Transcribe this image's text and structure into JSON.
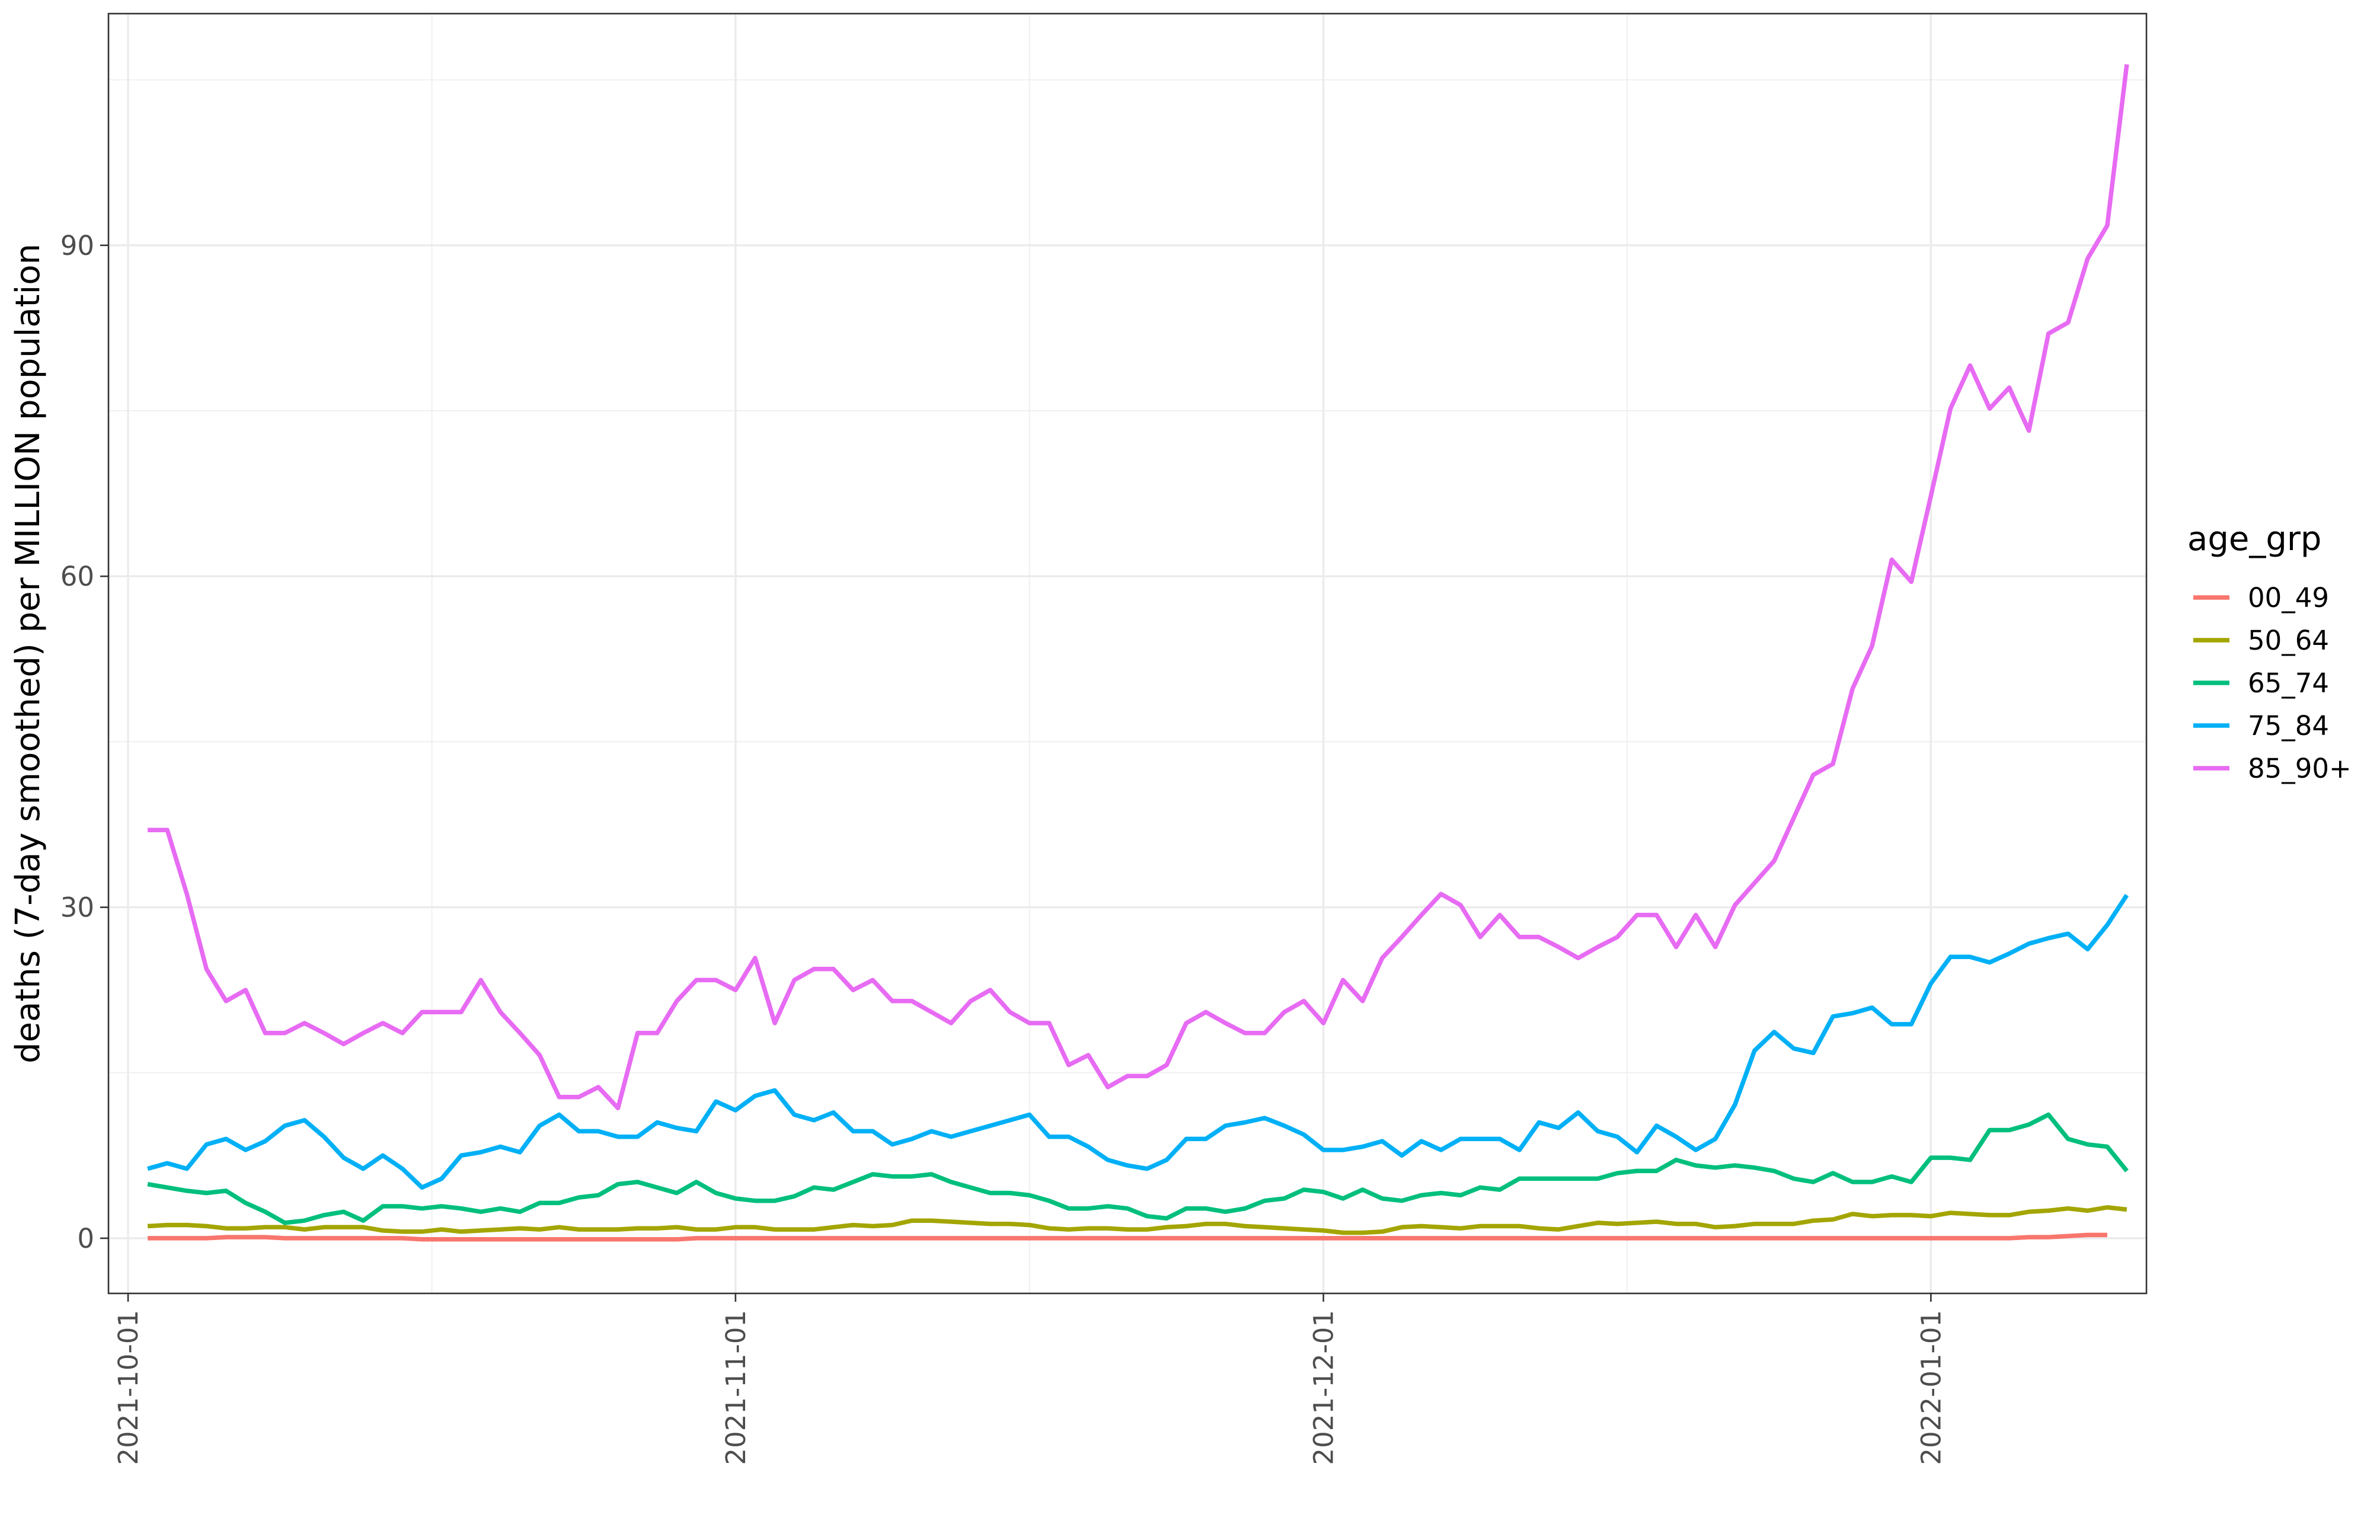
{
  "chart_data": {
    "type": "line",
    "title": "",
    "xlabel": "",
    "ylabel": "deaths (7-day smoothed) per MILLION population",
    "x_start": "2021-10-02",
    "x_end": "2022-01-10",
    "xlim": [
      "2021-09-30",
      "2022-01-12"
    ],
    "ylim": [
      -5,
      111
    ],
    "y_ticks": [
      0,
      30,
      60,
      90
    ],
    "y_tick_labels": [
      "0",
      "30",
      "60",
      "90"
    ],
    "x_ticks": [
      "2021-10-01",
      "2021-11-01",
      "2021-12-01",
      "2022-01-01"
    ],
    "x_tick_labels": [
      "2021-10-01",
      "2021-11-01",
      "2021-12-01",
      "2022-01-01"
    ],
    "grid": true,
    "legend_title": "age_grp",
    "legend_position": "right",
    "series": [
      {
        "name": "00_49",
        "color": "#F8766D",
        "values": [
          0.0,
          0.0,
          0.0,
          0.0,
          0.1,
          0.1,
          0.1,
          0.0,
          0.0,
          0.0,
          0.0,
          0.0,
          0.0,
          0.0,
          -0.1,
          -0.1,
          -0.1,
          -0.1,
          -0.1,
          -0.1,
          -0.1,
          -0.1,
          -0.1,
          -0.1,
          -0.1,
          -0.1,
          -0.1,
          -0.1,
          0.0,
          0.0,
          0.0,
          0.0,
          0.0,
          0.0,
          0.0,
          0.0,
          0.0,
          0.0,
          0.0,
          0.0,
          0.0,
          0.0,
          0.0,
          0.0,
          0.0,
          0.0,
          0.0,
          0.0,
          0.0,
          0.0,
          0.0,
          0.0,
          0.0,
          0.0,
          0.0,
          0.0,
          0.0,
          0.0,
          0.0,
          0.0,
          0.0,
          0.0,
          0.0,
          0.0,
          0.0,
          0.0,
          0.0,
          0.0,
          0.0,
          0.0,
          0.0,
          0.0,
          0.0,
          0.0,
          0.0,
          0.0,
          0.0,
          0.0,
          0.0,
          0.0,
          0.0,
          0.0,
          0.0,
          0.0,
          0.0,
          0.0,
          0.0,
          0.0,
          0.0,
          0.0,
          0.0,
          0.0,
          0.0,
          0.0,
          0.0,
          0.0,
          0.1,
          0.1,
          0.2,
          0.3,
          0.3
        ]
      },
      {
        "name": "50_64",
        "color": "#A3A500",
        "values": [
          1.1,
          1.2,
          1.2,
          1.1,
          0.9,
          0.9,
          1.0,
          1.0,
          0.8,
          1.0,
          1.0,
          1.0,
          0.7,
          0.6,
          0.6,
          0.8,
          0.6,
          0.7,
          0.8,
          0.9,
          0.8,
          1.0,
          0.8,
          0.8,
          0.8,
          0.9,
          0.9,
          1.0,
          0.8,
          0.8,
          1.0,
          1.0,
          0.8,
          0.8,
          0.8,
          1.0,
          1.2,
          1.1,
          1.2,
          1.6,
          1.6,
          1.5,
          1.4,
          1.3,
          1.3,
          1.2,
          0.9,
          0.8,
          0.9,
          0.9,
          0.8,
          0.8,
          1.0,
          1.1,
          1.3,
          1.3,
          1.1,
          1.0,
          0.9,
          0.8,
          0.7,
          0.5,
          0.5,
          0.6,
          1.0,
          1.1,
          1.0,
          0.9,
          1.1,
          1.1,
          1.1,
          0.9,
          0.8,
          1.1,
          1.4,
          1.3,
          1.4,
          1.5,
          1.3,
          1.3,
          1.0,
          1.1,
          1.3,
          1.3,
          1.3,
          1.6,
          1.7,
          2.2,
          2.0,
          2.1,
          2.1,
          2.0,
          2.3,
          2.2,
          2.1,
          2.1,
          2.4,
          2.5,
          2.7,
          2.5,
          2.8,
          2.6
        ]
      },
      {
        "name": "65_74",
        "color": "#00BF7D",
        "values": [
          4.9,
          4.6,
          4.3,
          4.1,
          4.3,
          3.2,
          2.4,
          1.4,
          1.6,
          2.1,
          2.4,
          1.6,
          2.9,
          2.9,
          2.7,
          2.9,
          2.7,
          2.4,
          2.7,
          2.4,
          3.2,
          3.2,
          3.7,
          3.9,
          4.9,
          5.1,
          4.6,
          4.1,
          5.1,
          4.1,
          3.6,
          3.4,
          3.4,
          3.8,
          4.6,
          4.4,
          5.1,
          5.8,
          5.6,
          5.6,
          5.8,
          5.1,
          4.6,
          4.1,
          4.1,
          3.9,
          3.4,
          2.7,
          2.7,
          2.9,
          2.7,
          2.0,
          1.8,
          2.7,
          2.7,
          2.4,
          2.7,
          3.4,
          3.6,
          4.4,
          4.2,
          3.6,
          4.4,
          3.6,
          3.4,
          3.9,
          4.1,
          3.9,
          4.6,
          4.4,
          5.4,
          5.4,
          5.4,
          5.4,
          5.4,
          5.9,
          6.1,
          6.1,
          7.1,
          6.6,
          6.4,
          6.6,
          6.4,
          6.1,
          5.4,
          5.1,
          5.9,
          5.1,
          5.1,
          5.6,
          5.1,
          7.3,
          7.3,
          7.1,
          9.8,
          9.8,
          10.3,
          11.2,
          9.0,
          8.5,
          8.3,
          6.1
        ]
      },
      {
        "name": "75_84",
        "color": "#00B0F6",
        "values": [
          6.3,
          6.8,
          6.3,
          8.5,
          9.0,
          8.0,
          8.8,
          10.2,
          10.7,
          9.2,
          7.3,
          6.3,
          7.5,
          6.3,
          4.6,
          5.4,
          7.5,
          7.8,
          8.3,
          7.8,
          10.2,
          11.2,
          9.7,
          9.7,
          9.2,
          9.2,
          10.5,
          10.0,
          9.7,
          12.4,
          11.6,
          12.9,
          13.4,
          11.2,
          10.7,
          11.4,
          9.7,
          9.7,
          8.5,
          9.0,
          9.7,
          9.2,
          9.7,
          10.2,
          10.7,
          11.2,
          9.2,
          9.2,
          8.3,
          7.1,
          6.6,
          6.3,
          7.1,
          9.0,
          9.0,
          10.2,
          10.5,
          10.9,
          10.2,
          9.4,
          8.0,
          8.0,
          8.3,
          8.8,
          7.5,
          8.8,
          8.0,
          9.0,
          9.0,
          9.0,
          8.0,
          10.5,
          10.0,
          11.4,
          9.7,
          9.2,
          7.8,
          10.2,
          9.2,
          8.0,
          9.0,
          12.1,
          17.0,
          18.7,
          17.2,
          16.8,
          20.1,
          20.4,
          20.9,
          19.4,
          19.4,
          23.1,
          25.5,
          25.5,
          25.0,
          25.8,
          26.7,
          27.2,
          27.6,
          26.2,
          28.4,
          31.1
        ]
      },
      {
        "name": "85_90+",
        "color": "#E76BF3",
        "values": [
          37.0,
          37.0,
          31.2,
          24.4,
          21.5,
          22.5,
          18.6,
          18.6,
          19.5,
          18.6,
          17.6,
          18.6,
          19.5,
          18.6,
          20.5,
          20.5,
          20.5,
          23.4,
          20.5,
          18.6,
          16.6,
          12.8,
          12.8,
          13.7,
          11.8,
          18.6,
          18.6,
          21.5,
          23.4,
          23.4,
          22.5,
          25.4,
          19.5,
          23.4,
          24.4,
          24.4,
          22.5,
          23.4,
          21.5,
          21.5,
          20.5,
          19.5,
          21.5,
          22.5,
          20.5,
          19.5,
          19.5,
          15.7,
          16.6,
          13.7,
          14.7,
          14.7,
          15.7,
          19.5,
          20.5,
          19.5,
          18.6,
          18.6,
          20.5,
          21.5,
          19.5,
          23.4,
          21.5,
          25.4,
          27.3,
          29.3,
          31.2,
          30.2,
          27.3,
          29.3,
          27.3,
          27.3,
          26.4,
          25.4,
          26.4,
          27.3,
          29.3,
          29.3,
          26.4,
          29.3,
          26.4,
          30.2,
          32.2,
          34.2,
          38.1,
          42.0,
          43.0,
          49.8,
          53.7,
          61.5,
          59.5,
          67.3,
          75.2,
          79.1,
          75.2,
          77.1,
          73.2,
          82.0,
          83.0,
          88.8,
          91.8,
          106.4
        ]
      }
    ]
  }
}
